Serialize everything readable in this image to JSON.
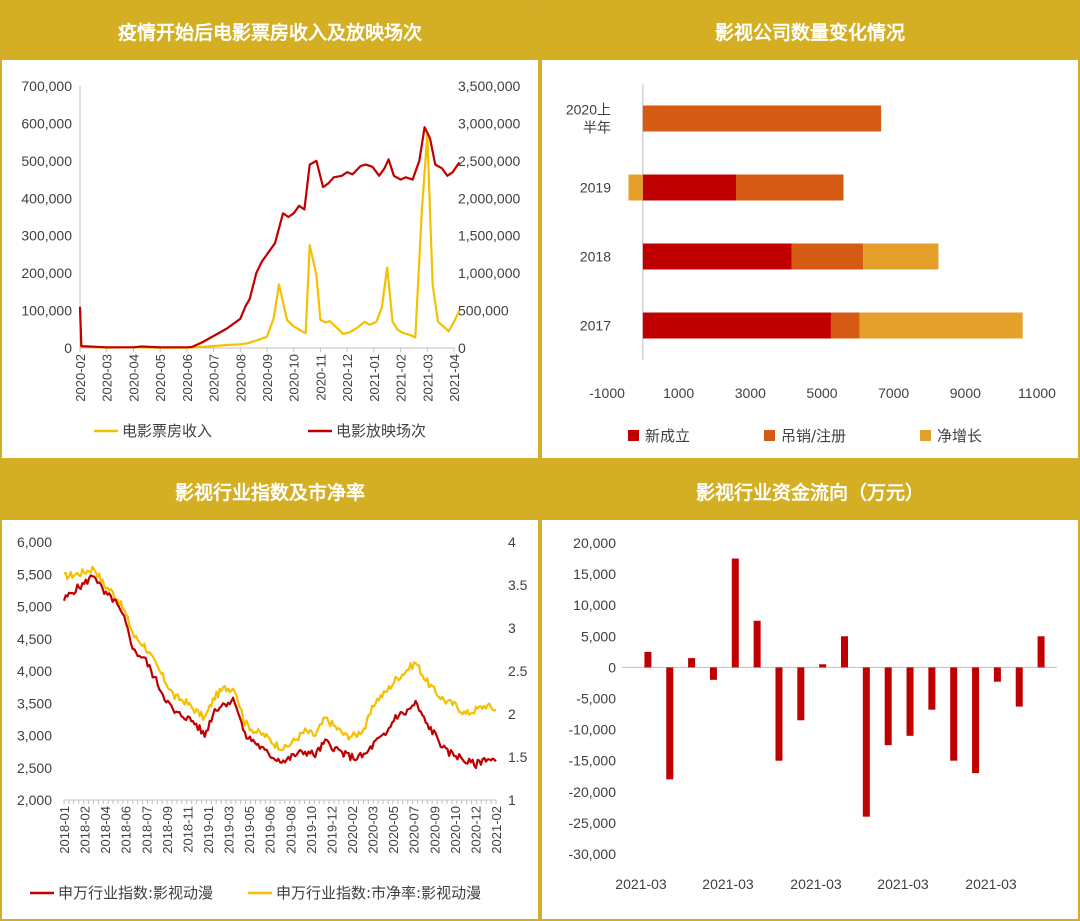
{
  "panels": {
    "tl_title": "疫情开始后电影票房收入及放映场次",
    "tr_title": "影视公司数量变化情况",
    "bl_title": "影视行业指数及市净率",
    "br_title": "影视行业资金流向（万元）"
  },
  "colors": {
    "gold": "#d4af23",
    "dark_red": "#c00000",
    "yellow": "#f5c000",
    "orange": "#d55a13",
    "amber": "#e5a02b"
  },
  "chart_data": [
    {
      "id": "box_office",
      "type": "line",
      "title": "疫情开始后电影票房收入及放映场次",
      "x_tick_labels": [
        "2020-02",
        "2020-03",
        "2020-04",
        "2020-05",
        "2020-06",
        "2020-07",
        "2020-08",
        "2020-09",
        "2020-10",
        "2020-11",
        "2020-12",
        "2021-01",
        "2021-02",
        "2021-03",
        "2021-04"
      ],
      "y_left_ticks": [
        "0",
        "100,000",
        "200,000",
        "300,000",
        "400,000",
        "500,000",
        "600,000",
        "700,000"
      ],
      "y_left_range": [
        0,
        700000
      ],
      "y_right_ticks": [
        "0",
        "500,000",
        "1,000,000",
        "1,500,000",
        "2,000,000",
        "2,500,000",
        "3,000,000",
        "3,500,000"
      ],
      "y_right_range": [
        0,
        3500000
      ],
      "series": [
        {
          "name": "电影票房收入",
          "axis": "left",
          "color": "#f5c000",
          "points": [
            [
              0.0,
              100000
            ],
            [
              0.05,
              3000
            ],
            [
              1,
              1000
            ],
            [
              2,
              2000
            ],
            [
              3,
              1000
            ],
            [
              4,
              1000
            ],
            [
              4.2,
              1500
            ],
            [
              4.6,
              3000
            ],
            [
              5.0,
              5000
            ],
            [
              5.5,
              8000
            ],
            [
              6.0,
              10000
            ],
            [
              6.3,
              13000
            ],
            [
              6.6,
              20000
            ],
            [
              7.0,
              30000
            ],
            [
              7.25,
              80000
            ],
            [
              7.45,
              170000
            ],
            [
              7.75,
              75000
            ],
            [
              8.0,
              58000
            ],
            [
              8.3,
              45000
            ],
            [
              8.45,
              40000
            ],
            [
              8.6,
              275000
            ],
            [
              8.85,
              195000
            ],
            [
              9.0,
              75000
            ],
            [
              9.2,
              68000
            ],
            [
              9.35,
              72000
            ],
            [
              9.6,
              55000
            ],
            [
              9.85,
              38000
            ],
            [
              10.1,
              42000
            ],
            [
              10.4,
              55000
            ],
            [
              10.65,
              70000
            ],
            [
              10.85,
              62000
            ],
            [
              11.1,
              70000
            ],
            [
              11.3,
              110000
            ],
            [
              11.5,
              215000
            ],
            [
              11.7,
              70000
            ],
            [
              11.9,
              48000
            ],
            [
              12.1,
              40000
            ],
            [
              12.35,
              35000
            ],
            [
              12.55,
              28000
            ],
            [
              12.8,
              370000
            ],
            [
              13.0,
              570000
            ],
            [
              13.2,
              170000
            ],
            [
              13.4,
              70000
            ],
            [
              13.6,
              58000
            ],
            [
              13.8,
              45000
            ],
            [
              14.0,
              70000
            ],
            [
              14.2,
              100000
            ]
          ]
        },
        {
          "name": "电影放映场次",
          "axis": "right",
          "color": "#c00000",
          "points": [
            [
              0.0,
              550000
            ],
            [
              0.05,
              25000
            ],
            [
              1,
              10000
            ],
            [
              2,
              10000
            ],
            [
              2.3,
              20000
            ],
            [
              3,
              10000
            ],
            [
              4,
              10000
            ],
            [
              4.2,
              15000
            ],
            [
              4.6,
              80000
            ],
            [
              5.0,
              160000
            ],
            [
              5.5,
              260000
            ],
            [
              6.0,
              390000
            ],
            [
              6.2,
              560000
            ],
            [
              6.35,
              650000
            ],
            [
              6.6,
              1000000
            ],
            [
              6.8,
              1150000
            ],
            [
              7.0,
              1250000
            ],
            [
              7.3,
              1400000
            ],
            [
              7.6,
              1800000
            ],
            [
              7.8,
              1750000
            ],
            [
              8.0,
              1800000
            ],
            [
              8.2,
              1900000
            ],
            [
              8.4,
              1850000
            ],
            [
              8.6,
              2450000
            ],
            [
              8.85,
              2500000
            ],
            [
              9.1,
              2150000
            ],
            [
              9.3,
              2200000
            ],
            [
              9.5,
              2280000
            ],
            [
              9.8,
              2300000
            ],
            [
              10.0,
              2350000
            ],
            [
              10.2,
              2320000
            ],
            [
              10.5,
              2430000
            ],
            [
              10.7,
              2450000
            ],
            [
              10.95,
              2420000
            ],
            [
              11.2,
              2300000
            ],
            [
              11.4,
              2400000
            ],
            [
              11.55,
              2520000
            ],
            [
              11.75,
              2300000
            ],
            [
              12.0,
              2250000
            ],
            [
              12.2,
              2280000
            ],
            [
              12.45,
              2250000
            ],
            [
              12.7,
              2500000
            ],
            [
              12.9,
              2950000
            ],
            [
              13.1,
              2800000
            ],
            [
              13.3,
              2450000
            ],
            [
              13.55,
              2400000
            ],
            [
              13.75,
              2300000
            ],
            [
              13.95,
              2350000
            ],
            [
              14.2,
              2480000
            ]
          ]
        }
      ],
      "legend": [
        "电影票房收入",
        "电影放映场次"
      ]
    },
    {
      "id": "company_count",
      "type": "bar",
      "orientation": "horizontal",
      "stacked": true,
      "title": "影视公司数量变化情况",
      "categories": [
        "2020上半年",
        "2019",
        "2018",
        "2017"
      ],
      "category_labels": [
        [
          "2020上",
          "半年"
        ],
        [
          "2019"
        ],
        [
          "2018"
        ],
        [
          "2017"
        ]
      ],
      "xlim": [
        -1000,
        11000
      ],
      "x_ticks": [
        "-1000",
        "1000",
        "3000",
        "5000",
        "7000",
        "9000",
        "11000"
      ],
      "series": [
        {
          "name": "新成立",
          "color": "#c00000",
          "values": [
            0,
            2600,
            4150,
            5250
          ]
        },
        {
          "name": "吊销/注册",
          "color": "#d55a13",
          "values": [
            6650,
            3000,
            2000,
            800
          ]
        },
        {
          "name": "净增长",
          "color": "#e5a02b",
          "values": [
            0,
            -400,
            2100,
            4550
          ]
        }
      ],
      "legend": [
        "新成立",
        "吊销/注册",
        "净增长"
      ]
    },
    {
      "id": "industry_index",
      "type": "line",
      "title": "影视行业指数及市净率",
      "x_tick_labels": [
        "2018-01",
        "2018-02",
        "2018-04",
        "2018-06",
        "2018-07",
        "2018-09",
        "2018-11",
        "2019-01",
        "2019-03",
        "2019-05",
        "2019-06",
        "2019-08",
        "2019-10",
        "2019-12",
        "2020-02",
        "2020-03",
        "2020-05",
        "2020-07",
        "2020-09",
        "2020-10",
        "2020-12",
        "2021-02"
      ],
      "y_left_ticks": [
        "2,000",
        "2,500",
        "3,000",
        "3,500",
        "4,000",
        "4,500",
        "5,000",
        "5,500",
        "6,000"
      ],
      "y_left_range": [
        2000,
        6000
      ],
      "y_right_ticks": [
        "1",
        "1.5",
        "2",
        "2.5",
        "3",
        "3.5",
        "4"
      ],
      "y_right_range": [
        1,
        4
      ],
      "series": [
        {
          "name": "申万行业指数:影视动漫",
          "axis": "left",
          "color": "#c00000",
          "points": [
            [
              0,
              5100
            ],
            [
              0.5,
              5250
            ],
            [
              1,
              5350
            ],
            [
              1.5,
              5500
            ],
            [
              2,
              5200
            ],
            [
              2.5,
              5100
            ],
            [
              3,
              4800
            ],
            [
              3.5,
              4300
            ],
            [
              4,
              4200
            ],
            [
              4.5,
              3900
            ],
            [
              5,
              3600
            ],
            [
              5.5,
              3350
            ],
            [
              6,
              3300
            ],
            [
              6.5,
              3200
            ],
            [
              7,
              3000
            ],
            [
              7.5,
              3400
            ],
            [
              8,
              3500
            ],
            [
              8.5,
              3550
            ],
            [
              9,
              3000
            ],
            [
              9.5,
              2900
            ],
            [
              10,
              2750
            ],
            [
              10.5,
              2650
            ],
            [
              11,
              2600
            ],
            [
              11.5,
              2700
            ],
            [
              12,
              2750
            ],
            [
              12.5,
              2700
            ],
            [
              13,
              2900
            ],
            [
              13.5,
              2800
            ],
            [
              14,
              2700
            ],
            [
              14.5,
              2650
            ],
            [
              15,
              2700
            ],
            [
              15.5,
              2900
            ],
            [
              16,
              3000
            ],
            [
              16.5,
              3300
            ],
            [
              17,
              3350
            ],
            [
              17.5,
              3500
            ],
            [
              18,
              3200
            ],
            [
              18.5,
              3000
            ],
            [
              19,
              2750
            ],
            [
              19.5,
              2700
            ],
            [
              20,
              2600
            ],
            [
              20.5,
              2550
            ],
            [
              21,
              2650
            ],
            [
              21.5,
              2600
            ]
          ]
        },
        {
          "name": "申万行业指数:市净率:影视动漫",
          "axis": "right",
          "color": "#f5c000",
          "points": [
            [
              0,
              3.6
            ],
            [
              0.5,
              3.62
            ],
            [
              1,
              3.65
            ],
            [
              1.5,
              3.7
            ],
            [
              2,
              3.5
            ],
            [
              2.5,
              3.4
            ],
            [
              3,
              3.2
            ],
            [
              3.5,
              2.9
            ],
            [
              4,
              2.8
            ],
            [
              4.5,
              2.6
            ],
            [
              5,
              2.4
            ],
            [
              5.5,
              2.2
            ],
            [
              6,
              2.15
            ],
            [
              6.5,
              2.05
            ],
            [
              7,
              1.95
            ],
            [
              7.5,
              2.2
            ],
            [
              8,
              2.3
            ],
            [
              8.5,
              2.3
            ],
            [
              9,
              1.9
            ],
            [
              9.5,
              1.8
            ],
            [
              10,
              1.75
            ],
            [
              10.5,
              1.65
            ],
            [
              11,
              1.6
            ],
            [
              11.5,
              1.7
            ],
            [
              12,
              1.8
            ],
            [
              12.5,
              1.75
            ],
            [
              13,
              1.95
            ],
            [
              13.5,
              1.85
            ],
            [
              14,
              1.75
            ],
            [
              14.5,
              1.75
            ],
            [
              15,
              1.85
            ],
            [
              15.5,
              2.15
            ],
            [
              16,
              2.25
            ],
            [
              16.5,
              2.4
            ],
            [
              17,
              2.5
            ],
            [
              17.5,
              2.6
            ],
            [
              18,
              2.4
            ],
            [
              18.5,
              2.25
            ],
            [
              19,
              2.15
            ],
            [
              19.5,
              2.1
            ],
            [
              20,
              2.0
            ],
            [
              20.5,
              2.05
            ],
            [
              21,
              2.1
            ],
            [
              21.5,
              2.05
            ]
          ]
        }
      ],
      "legend": [
        "申万行业指数:影视动漫",
        "申万行业指数:市净率:影视动漫"
      ]
    },
    {
      "id": "fund_flow",
      "type": "bar",
      "title": "影视行业资金流向（万元）",
      "ylim": [
        -30000,
        20000
      ],
      "y_ticks": [
        "-30,000",
        "-25,000",
        "-20,000",
        "-15,000",
        "-10,000",
        "-5,000",
        "0",
        "5,000",
        "10,000",
        "15,000",
        "20,000"
      ],
      "x_tick_labels": [
        "2021-03",
        "2021-03",
        "2021-03",
        "2021-03",
        "2021-03"
      ],
      "color": "#c00000",
      "values": [
        2500,
        -18000,
        1500,
        -2000,
        17500,
        7500,
        -15000,
        -8500,
        500,
        5000,
        -24000,
        -12500,
        -11000,
        -6800,
        -15000,
        -17000,
        -2300,
        -6300,
        5000
      ]
    }
  ]
}
